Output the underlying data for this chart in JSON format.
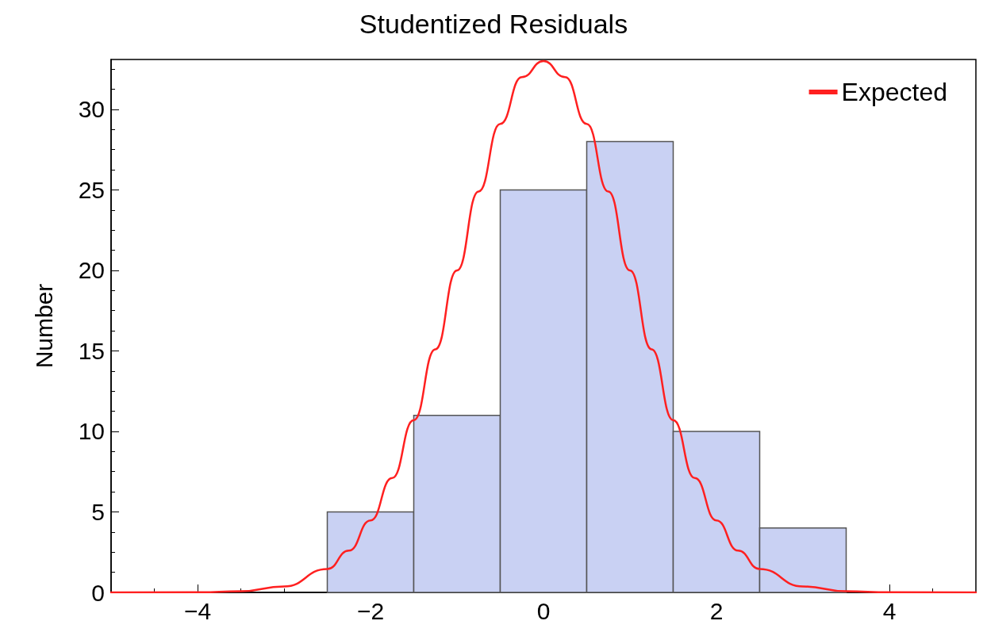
{
  "chart_data": {
    "type": "histogram",
    "title": "Studentized Residuals",
    "ylabel": "Number",
    "bins": [
      -2.5,
      -1.5,
      -0.5,
      0.5,
      1.5,
      2.5,
      3.5
    ],
    "values": [
      5,
      11,
      25,
      28,
      10,
      4
    ],
    "color": "#c9d1f3",
    "series": [
      {
        "type": "line",
        "name": "Expected",
        "color": "#ff2020",
        "x": [
          -5,
          -4,
          -3.5,
          -3,
          -2.5,
          -2.25,
          -2,
          -1.75,
          -1.5,
          -1.25,
          -1,
          -0.75,
          -0.5,
          -0.25,
          0,
          0.25,
          0.5,
          0.75,
          1,
          1.25,
          1.5,
          1.75,
          2,
          2.25,
          2.5,
          3,
          3.5,
          4,
          5
        ],
        "values": [
          0,
          0.01,
          0.07,
          0.37,
          1.45,
          2.6,
          4.47,
          7.1,
          10.7,
          15.1,
          20,
          24.9,
          29.1,
          32,
          33,
          32,
          29.1,
          24.9,
          20,
          15.1,
          10.7,
          7.1,
          4.47,
          2.6,
          1.45,
          0.37,
          0.07,
          0.01,
          0
        ]
      }
    ],
    "xlim": [
      -5,
      5
    ],
    "xticks": [
      -4,
      -2,
      0,
      2,
      4
    ],
    "ylim": [
      0,
      33.1
    ],
    "yticks": [
      0,
      5,
      10,
      15,
      20,
      25,
      30
    ],
    "grid": false,
    "legend": "top right",
    "marker": "none",
    "line_style": "solid"
  }
}
